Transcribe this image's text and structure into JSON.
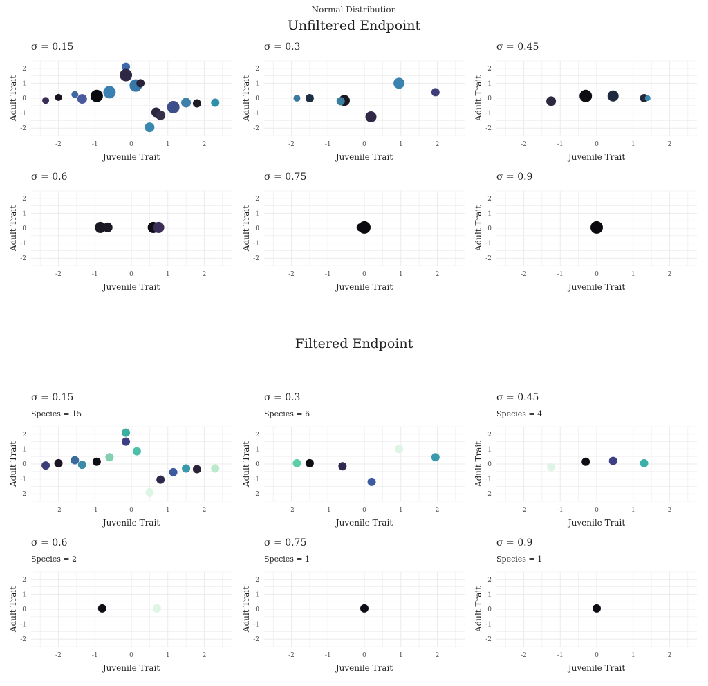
{
  "figure": {
    "suptitle": "Normal Distribution",
    "section_titles": [
      "Unfiltered Endpoint",
      "Filtered Endpoint"
    ]
  },
  "colors": {
    "grid": "#ebebeb",
    "text": "#222222",
    "tick": "#4d4d4d"
  },
  "chart_data": [
    {
      "type": "scatter",
      "section": "Unfiltered Endpoint",
      "title": "σ = 0.15",
      "subtitle": "",
      "xlabel": "Juvenile Trait",
      "ylabel": "Adult Trait",
      "xlim": [
        -2.75,
        2.75
      ],
      "ylim": [
        -2.5,
        2.5
      ],
      "xticks": [
        -2,
        -1,
        0,
        1,
        2
      ],
      "yticks": [
        -2,
        -1,
        0,
        1,
        2
      ],
      "grid": true,
      "points": [
        {
          "x": -2.35,
          "y": -0.15,
          "r": 5,
          "color": "#3a2d55"
        },
        {
          "x": -2.0,
          "y": 0.05,
          "r": 5,
          "color": "#1a1020"
        },
        {
          "x": -1.55,
          "y": 0.25,
          "r": 5,
          "color": "#3e69a0"
        },
        {
          "x": -1.35,
          "y": -0.05,
          "r": 7,
          "color": "#4a5a9e"
        },
        {
          "x": -0.95,
          "y": 0.15,
          "r": 9,
          "color": "#0b0b0f"
        },
        {
          "x": -0.6,
          "y": 0.4,
          "r": 9,
          "color": "#3a80b0"
        },
        {
          "x": -0.15,
          "y": 2.1,
          "r": 6,
          "color": "#3a68a8"
        },
        {
          "x": -0.15,
          "y": 1.55,
          "r": 9,
          "color": "#2e2845"
        },
        {
          "x": 0.12,
          "y": 0.85,
          "r": 9,
          "color": "#3678a8"
        },
        {
          "x": 0.25,
          "y": 1.0,
          "r": 6,
          "color": "#2a2238"
        },
        {
          "x": 0.5,
          "y": -1.95,
          "r": 7,
          "color": "#3a88b0"
        },
        {
          "x": 0.68,
          "y": -0.95,
          "r": 7,
          "color": "#2a2540"
        },
        {
          "x": 0.8,
          "y": -1.15,
          "r": 7,
          "color": "#35304a"
        },
        {
          "x": 1.15,
          "y": -0.6,
          "r": 9,
          "color": "#3d4f8a"
        },
        {
          "x": 1.5,
          "y": -0.3,
          "r": 7,
          "color": "#3d80a8"
        },
        {
          "x": 1.8,
          "y": -0.35,
          "r": 6,
          "color": "#1d1b24"
        },
        {
          "x": 2.3,
          "y": -0.3,
          "r": 6,
          "color": "#2e90a8"
        }
      ]
    },
    {
      "type": "scatter",
      "section": "Unfiltered Endpoint",
      "title": "σ = 0.3",
      "subtitle": "",
      "xlabel": "Juvenile Trait",
      "ylabel": "Adult Trait",
      "xlim": [
        -2.75,
        2.75
      ],
      "ylim": [
        -2.5,
        2.5
      ],
      "xticks": [
        -2,
        -1,
        0,
        1,
        2
      ],
      "yticks": [
        -2,
        -1,
        0,
        1,
        2
      ],
      "grid": true,
      "points": [
        {
          "x": -1.85,
          "y": 0.0,
          "r": 5,
          "color": "#3a7aa0"
        },
        {
          "x": -1.5,
          "y": 0.0,
          "r": 6,
          "color": "#1d2f45"
        },
        {
          "x": -0.55,
          "y": -0.15,
          "r": 8,
          "color": "#1a1822"
        },
        {
          "x": -0.65,
          "y": -0.2,
          "r": 6,
          "color": "#3a7fa0"
        },
        {
          "x": 0.18,
          "y": -1.25,
          "r": 8,
          "color": "#302845"
        },
        {
          "x": 0.95,
          "y": 1.0,
          "r": 8,
          "color": "#3a82b0"
        },
        {
          "x": 1.95,
          "y": 0.4,
          "r": 6,
          "color": "#3d3d7a"
        }
      ]
    },
    {
      "type": "scatter",
      "section": "Unfiltered Endpoint",
      "title": "σ = 0.45",
      "subtitle": "",
      "xlabel": "Juvenile Trait",
      "ylabel": "Adult Trait",
      "xlim": [
        -2.75,
        2.75
      ],
      "ylim": [
        -2.5,
        2.5
      ],
      "xticks": [
        -2,
        -1,
        0,
        1,
        2
      ],
      "yticks": [
        -2,
        -1,
        0,
        1,
        2
      ],
      "grid": true,
      "points": [
        {
          "x": -1.25,
          "y": -0.2,
          "r": 7,
          "color": "#2c2840"
        },
        {
          "x": -0.3,
          "y": 0.15,
          "r": 9,
          "color": "#0d0d12"
        },
        {
          "x": 0.45,
          "y": 0.15,
          "r": 8,
          "color": "#1e2a3f"
        },
        {
          "x": 1.3,
          "y": 0.0,
          "r": 6,
          "color": "#23283a"
        },
        {
          "x": 1.4,
          "y": 0.0,
          "r": 4,
          "color": "#3a8ab0"
        }
      ]
    },
    {
      "type": "scatter",
      "section": "Unfiltered Endpoint",
      "title": "σ = 0.6",
      "subtitle": "",
      "xlabel": "Juvenile Trait",
      "ylabel": "Adult Trait",
      "xlim": [
        -2.75,
        2.75
      ],
      "ylim": [
        -2.5,
        2.5
      ],
      "xticks": [
        -2,
        -1,
        0,
        1,
        2
      ],
      "yticks": [
        -2,
        -1,
        0,
        1,
        2
      ],
      "grid": true,
      "points": [
        {
          "x": -0.85,
          "y": 0.05,
          "r": 8,
          "color": "#1a1822"
        },
        {
          "x": -0.65,
          "y": 0.05,
          "r": 7,
          "color": "#1c1a26"
        },
        {
          "x": 0.6,
          "y": 0.05,
          "r": 8,
          "color": "#0e0d14"
        },
        {
          "x": 0.75,
          "y": 0.05,
          "r": 8,
          "color": "#3a2e58"
        }
      ]
    },
    {
      "type": "scatter",
      "section": "Unfiltered Endpoint",
      "title": "σ = 0.75",
      "subtitle": "",
      "xlabel": "Juvenile Trait",
      "ylabel": "Adult Trait",
      "xlim": [
        -2.75,
        2.75
      ],
      "ylim": [
        -2.5,
        2.5
      ],
      "xticks": [
        -2,
        -1,
        0,
        1,
        2
      ],
      "yticks": [
        -2,
        -1,
        0,
        1,
        2
      ],
      "grid": true,
      "points": [
        {
          "x": -0.1,
          "y": 0.05,
          "r": 6,
          "color": "#0e0d14"
        },
        {
          "x": 0.0,
          "y": 0.05,
          "r": 9,
          "color": "#0b0b0f"
        }
      ]
    },
    {
      "type": "scatter",
      "section": "Unfiltered Endpoint",
      "title": "σ = 0.9",
      "subtitle": "",
      "xlabel": "Juvenile Trait",
      "ylabel": "Adult Trait",
      "xlim": [
        -2.75,
        2.75
      ],
      "ylim": [
        -2.5,
        2.5
      ],
      "xticks": [
        -2,
        -1,
        0,
        1,
        2
      ],
      "yticks": [
        -2,
        -1,
        0,
        1,
        2
      ],
      "grid": true,
      "points": [
        {
          "x": 0.0,
          "y": 0.05,
          "r": 9,
          "color": "#0b0b0f"
        }
      ]
    },
    {
      "type": "scatter",
      "section": "Filtered Endpoint",
      "title": "σ = 0.15",
      "subtitle": "Species = 15",
      "xlabel": "Juvenile Trait",
      "ylabel": "Adult Trait",
      "xlim": [
        -2.75,
        2.75
      ],
      "ylim": [
        -2.5,
        2.5
      ],
      "xticks": [
        -2,
        -1,
        0,
        1,
        2
      ],
      "yticks": [
        -2,
        -1,
        0,
        1,
        2
      ],
      "grid": true,
      "points": [
        {
          "x": -2.35,
          "y": -0.1,
          "r": 6,
          "color": "#3b3d78"
        },
        {
          "x": -2.0,
          "y": 0.05,
          "r": 6,
          "color": "#1b1422"
        },
        {
          "x": -1.55,
          "y": 0.25,
          "r": 6,
          "color": "#3a6b9a"
        },
        {
          "x": -1.35,
          "y": -0.05,
          "r": 6,
          "color": "#3a8aa8"
        },
        {
          "x": -0.95,
          "y": 0.15,
          "r": 6,
          "color": "#0f0e15"
        },
        {
          "x": -0.6,
          "y": 0.45,
          "r": 6,
          "color": "#82d0b0"
        },
        {
          "x": -0.15,
          "y": 2.1,
          "r": 6,
          "color": "#3cb0a0"
        },
        {
          "x": -0.15,
          "y": 1.5,
          "r": 6,
          "color": "#3e3f85"
        },
        {
          "x": 0.15,
          "y": 0.85,
          "r": 6,
          "color": "#4cc0a8"
        },
        {
          "x": 0.5,
          "y": -1.9,
          "r": 6,
          "color": "#def5e6"
        },
        {
          "x": 0.8,
          "y": -1.05,
          "r": 6,
          "color": "#2e2a4e"
        },
        {
          "x": 1.15,
          "y": -0.55,
          "r": 6,
          "color": "#3c5aa0"
        },
        {
          "x": 1.5,
          "y": -0.3,
          "r": 6,
          "color": "#3a99aa"
        },
        {
          "x": 1.8,
          "y": -0.35,
          "r": 6,
          "color": "#2a2238"
        },
        {
          "x": 2.3,
          "y": -0.3,
          "r": 6,
          "color": "#bde9cf"
        }
      ]
    },
    {
      "type": "scatter",
      "section": "Filtered Endpoint",
      "title": "σ = 0.3",
      "subtitle": "Species = 6",
      "xlabel": "Juvenile Trait",
      "ylabel": "Adult Trait",
      "xlim": [
        -2.75,
        2.75
      ],
      "ylim": [
        -2.5,
        2.5
      ],
      "xticks": [
        -2,
        -1,
        0,
        1,
        2
      ],
      "yticks": [
        -2,
        -1,
        0,
        1,
        2
      ],
      "grid": true,
      "points": [
        {
          "x": -1.85,
          "y": 0.05,
          "r": 6,
          "color": "#5ccfa6"
        },
        {
          "x": -1.5,
          "y": 0.05,
          "r": 6,
          "color": "#0f0e15"
        },
        {
          "x": -0.6,
          "y": -0.15,
          "r": 6,
          "color": "#2e2a4e"
        },
        {
          "x": 0.2,
          "y": -1.2,
          "r": 6,
          "color": "#3c5aa0"
        },
        {
          "x": 0.95,
          "y": 1.0,
          "r": 6,
          "color": "#def5e6"
        },
        {
          "x": 1.95,
          "y": 0.45,
          "r": 6,
          "color": "#3a99aa"
        }
      ]
    },
    {
      "type": "scatter",
      "section": "Filtered Endpoint",
      "title": "σ = 0.45",
      "subtitle": "Species = 4",
      "xlabel": "Juvenile Trait",
      "ylabel": "Adult Trait",
      "xlim": [
        -2.75,
        2.75
      ],
      "ylim": [
        -2.5,
        2.5
      ],
      "xticks": [
        -2,
        -1,
        0,
        1,
        2
      ],
      "yticks": [
        -2,
        -1,
        0,
        1,
        2
      ],
      "grid": true,
      "points": [
        {
          "x": -1.25,
          "y": -0.2,
          "r": 6,
          "color": "#def5e6"
        },
        {
          "x": -0.3,
          "y": 0.15,
          "r": 6,
          "color": "#0f0e15"
        },
        {
          "x": 0.45,
          "y": 0.2,
          "r": 6,
          "color": "#3e3f85"
        },
        {
          "x": 1.3,
          "y": 0.05,
          "r": 6,
          "color": "#3ab0a8"
        }
      ]
    },
    {
      "type": "scatter",
      "section": "Filtered Endpoint",
      "title": "σ = 0.6",
      "subtitle": "Species = 2",
      "xlabel": "Juvenile Trait",
      "ylabel": "Adult Trait",
      "xlim": [
        -2.75,
        2.75
      ],
      "ylim": [
        -2.5,
        2.5
      ],
      "xticks": [
        -2,
        -1,
        0,
        1,
        2
      ],
      "yticks": [
        -2,
        -1,
        0,
        1,
        2
      ],
      "grid": true,
      "points": [
        {
          "x": -0.8,
          "y": 0.05,
          "r": 6,
          "color": "#0f0e15"
        },
        {
          "x": 0.7,
          "y": 0.05,
          "r": 6,
          "color": "#def5e6"
        }
      ]
    },
    {
      "type": "scatter",
      "section": "Filtered Endpoint",
      "title": "σ = 0.75",
      "subtitle": "Species = 1",
      "xlabel": "Juvenile Trait",
      "ylabel": "Adult Trait",
      "xlim": [
        -2.75,
        2.75
      ],
      "ylim": [
        -2.5,
        2.5
      ],
      "xticks": [
        -2,
        -1,
        0,
        1,
        2
      ],
      "yticks": [
        -2,
        -1,
        0,
        1,
        2
      ],
      "grid": true,
      "points": [
        {
          "x": 0.0,
          "y": 0.05,
          "r": 6,
          "color": "#0f0e15"
        }
      ]
    },
    {
      "type": "scatter",
      "section": "Filtered Endpoint",
      "title": "σ = 0.9",
      "subtitle": "Species = 1",
      "xlabel": "Juvenile Trait",
      "ylabel": "Adult Trait",
      "xlim": [
        -2.75,
        2.75
      ],
      "ylim": [
        -2.5,
        2.5
      ],
      "xticks": [
        -2,
        -1,
        0,
        1,
        2
      ],
      "yticks": [
        -2,
        -1,
        0,
        1,
        2
      ],
      "grid": true,
      "points": [
        {
          "x": 0.0,
          "y": 0.05,
          "r": 6,
          "color": "#0f0e15"
        }
      ]
    }
  ]
}
